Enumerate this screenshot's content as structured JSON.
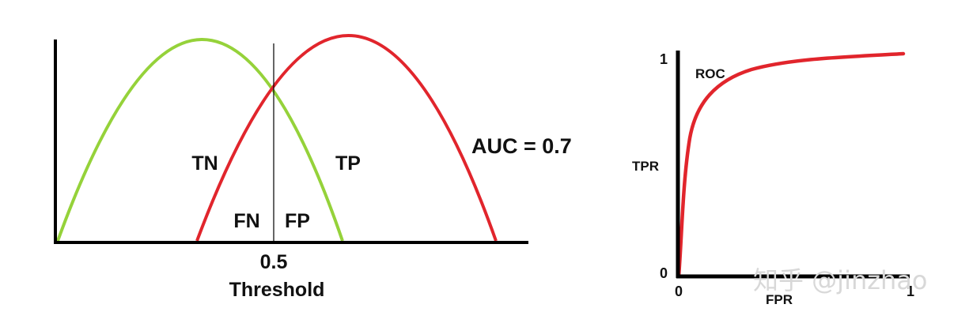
{
  "distribution_plot": {
    "region_labels": {
      "tn": "TN",
      "tp": "TP",
      "fn": "FN",
      "fp": "FP"
    },
    "threshold_value": "0.5",
    "threshold_label": "Threshold",
    "auc_text": "AUC = 0.7",
    "colors": {
      "negative_curve": "#95d23a",
      "positive_curve": "#e1252c",
      "axis": "#000000"
    }
  },
  "roc_plot": {
    "curve_label": "ROC",
    "ylabel": "TPR",
    "xlabel": "FPR",
    "y_tick_top": "1",
    "y_tick_bottom": "0",
    "x_tick_left": "0",
    "x_tick_right": "1",
    "color": "#e1252c"
  },
  "watermark": "知乎 @jinzhao"
}
